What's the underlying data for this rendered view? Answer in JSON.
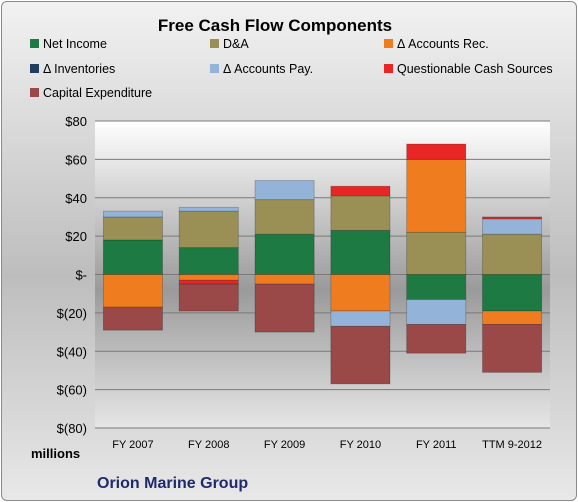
{
  "chart_data": {
    "type": "bar",
    "stacked": true,
    "title": "Free Cash Flow Components",
    "units_label": "millions",
    "company": "Orion Marine Group",
    "categories": [
      "FY 2007",
      "FY 2008",
      "FY 2009",
      "FY 2010",
      "FY 2011",
      "TTM 9-2012"
    ],
    "ylim": [
      -80,
      80
    ],
    "yticks": [
      80,
      60,
      40,
      20,
      0,
      -20,
      -40,
      -60,
      -80
    ],
    "ytick_labels": [
      "$80",
      "$60",
      "$40",
      "$20",
      "$-",
      "$(20)",
      "$(40)",
      "$(60)",
      "$(80)"
    ],
    "legend_position": "top",
    "grid": true,
    "series": [
      {
        "name": "Net Income",
        "color": "#1e7a43",
        "values": [
          18,
          14,
          21,
          23,
          -13,
          -19
        ]
      },
      {
        "name": "D&A",
        "color": "#9a9055",
        "values": [
          12,
          19,
          18,
          18,
          22,
          21
        ]
      },
      {
        "name": "Δ Accounts Rec.",
        "color": "#ef7d1f",
        "values": [
          -17,
          -3,
          -5,
          -19,
          38,
          -7
        ]
      },
      {
        "name": "Δ Inventories",
        "color": "#223c5e",
        "values": [
          0,
          0,
          0,
          0,
          0,
          0
        ]
      },
      {
        "name": "Δ Accounts Pay.",
        "color": "#93b3d8",
        "values": [
          3,
          2,
          10,
          -8,
          -13,
          8
        ]
      },
      {
        "name": "Questionable Cash Sources",
        "color": "#e82626",
        "values": [
          0,
          -2,
          0,
          5,
          8,
          1
        ]
      },
      {
        "name": "Capital Expenditure",
        "color": "#9a4848",
        "values": [
          -12,
          -14,
          -25,
          -30,
          -15,
          -25
        ]
      }
    ]
  }
}
